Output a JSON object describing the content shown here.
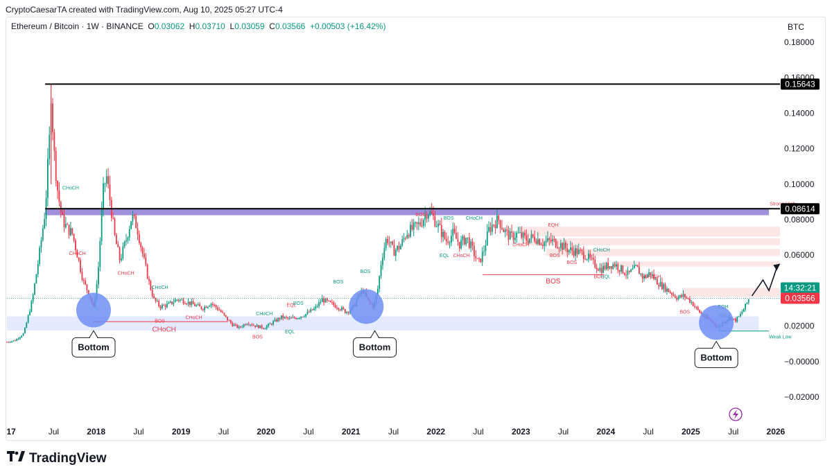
{
  "header": {
    "credit": "CryptoCaesarTA created with TradingView.com, Aug 10, 2025 05:27 UTC-4",
    "symbol": "Ethereum / Bitcoin · 1W · BINANCE",
    "o_label": "O",
    "o": "0.03062",
    "h_label": "H",
    "h": "0.03710",
    "l_label": "L",
    "l": "0.03059",
    "c_label": "C",
    "c": "0.03566",
    "change": "+0.00503 (+16.42%)",
    "currency": "BTC"
  },
  "brand": {
    "name": "TradingView"
  },
  "badges": {
    "ath": "0.15643",
    "resistance": "0.08614",
    "countdown": "14:32:21",
    "last": "0.03566"
  },
  "colors": {
    "up": "#089981",
    "down": "#f23645",
    "zone_blue": "#dbe3ff",
    "zone_purple": "#8f7dd6",
    "zone_red": "#fde0e0",
    "circle": "#6e8ef5"
  },
  "chart_data": {
    "type": "candlestick",
    "title": "",
    "xlabel": "",
    "ylabel": "",
    "ylim": [
      -0.03,
      0.19
    ],
    "yticks": [
      "0.18000",
      "0.16000",
      "0.14000",
      "0.12000",
      "0.10000",
      "0.08000",
      "0.06000",
      "0.04000",
      "0.02000",
      "−0.00000",
      "−0.02000"
    ],
    "ytick_values": [
      0.18,
      0.16,
      0.14,
      0.12,
      0.1,
      0.08,
      0.06,
      0.04,
      0.02,
      0.0,
      -0.02
    ],
    "xticks": [
      {
        "label": "17",
        "t": 2017.0,
        "bold": true
      },
      {
        "label": "Jul",
        "t": 2017.5,
        "bold": false
      },
      {
        "label": "2018",
        "t": 2018.0,
        "bold": true
      },
      {
        "label": "Jul",
        "t": 2018.5,
        "bold": false
      },
      {
        "label": "2019",
        "t": 2019.0,
        "bold": true
      },
      {
        "label": "Jul",
        "t": 2019.5,
        "bold": false
      },
      {
        "label": "2020",
        "t": 2020.0,
        "bold": true
      },
      {
        "label": "Jul",
        "t": 2020.5,
        "bold": false
      },
      {
        "label": "2021",
        "t": 2021.0,
        "bold": true
      },
      {
        "label": "Jul",
        "t": 2021.5,
        "bold": false
      },
      {
        "label": "2022",
        "t": 2022.0,
        "bold": true
      },
      {
        "label": "Jul",
        "t": 2022.5,
        "bold": false
      },
      {
        "label": "2023",
        "t": 2023.0,
        "bold": true
      },
      {
        "label": "Jul",
        "t": 2023.5,
        "bold": false
      },
      {
        "label": "2024",
        "t": 2024.0,
        "bold": true
      },
      {
        "label": "Jul",
        "t": 2024.5,
        "bold": false
      },
      {
        "label": "2025",
        "t": 2025.0,
        "bold": true
      },
      {
        "label": "Jul",
        "t": 2025.5,
        "bold": false
      },
      {
        "label": "2026",
        "t": 2026.0,
        "bold": true
      }
    ],
    "xlim": [
      2016.95,
      2026.05
    ],
    "price_path": [
      [
        2016.95,
        0.011
      ],
      [
        2017.05,
        0.012
      ],
      [
        2017.15,
        0.016
      ],
      [
        2017.25,
        0.035
      ],
      [
        2017.33,
        0.06
      ],
      [
        2017.4,
        0.085
      ],
      [
        2017.45,
        0.125
      ],
      [
        2017.47,
        0.153
      ],
      [
        2017.5,
        0.12
      ],
      [
        2017.55,
        0.095
      ],
      [
        2017.6,
        0.08
      ],
      [
        2017.66,
        0.075
      ],
      [
        2017.72,
        0.072
      ],
      [
        2017.78,
        0.06
      ],
      [
        2017.85,
        0.045
      ],
      [
        2017.92,
        0.038
      ],
      [
        2017.97,
        0.03
      ],
      [
        2018.02,
        0.048
      ],
      [
        2018.08,
        0.095
      ],
      [
        2018.12,
        0.105
      ],
      [
        2018.16,
        0.092
      ],
      [
        2018.22,
        0.07
      ],
      [
        2018.28,
        0.057
      ],
      [
        2018.35,
        0.068
      ],
      [
        2018.42,
        0.082
      ],
      [
        2018.48,
        0.076
      ],
      [
        2018.55,
        0.06
      ],
      [
        2018.62,
        0.045
      ],
      [
        2018.68,
        0.035
      ],
      [
        2018.75,
        0.031
      ],
      [
        2018.85,
        0.032
      ],
      [
        2018.95,
        0.035
      ],
      [
        2019.05,
        0.034
      ],
      [
        2019.15,
        0.032
      ],
      [
        2019.25,
        0.03
      ],
      [
        2019.35,
        0.033
      ],
      [
        2019.45,
        0.029
      ],
      [
        2019.52,
        0.025
      ],
      [
        2019.6,
        0.021
      ],
      [
        2019.68,
        0.019
      ],
      [
        2019.78,
        0.022
      ],
      [
        2019.88,
        0.02
      ],
      [
        2019.98,
        0.019
      ],
      [
        2020.08,
        0.022
      ],
      [
        2020.18,
        0.025
      ],
      [
        2020.28,
        0.024
      ],
      [
        2020.38,
        0.025
      ],
      [
        2020.48,
        0.027
      ],
      [
        2020.58,
        0.03
      ],
      [
        2020.66,
        0.035
      ],
      [
        2020.74,
        0.033
      ],
      [
        2020.84,
        0.031
      ],
      [
        2020.94,
        0.028
      ],
      [
        2021.02,
        0.03
      ],
      [
        2021.08,
        0.036
      ],
      [
        2021.14,
        0.04
      ],
      [
        2021.2,
        0.034
      ],
      [
        2021.27,
        0.031
      ],
      [
        2021.32,
        0.042
      ],
      [
        2021.36,
        0.058
      ],
      [
        2021.42,
        0.07
      ],
      [
        2021.5,
        0.062
      ],
      [
        2021.58,
        0.065
      ],
      [
        2021.66,
        0.073
      ],
      [
        2021.74,
        0.075
      ],
      [
        2021.82,
        0.078
      ],
      [
        2021.9,
        0.085
      ],
      [
        2021.96,
        0.082
      ],
      [
        2022.04,
        0.075
      ],
      [
        2022.12,
        0.068
      ],
      [
        2022.2,
        0.072
      ],
      [
        2022.28,
        0.066
      ],
      [
        2022.36,
        0.07
      ],
      [
        2022.44,
        0.062
      ],
      [
        2022.5,
        0.055
      ],
      [
        2022.56,
        0.062
      ],
      [
        2022.62,
        0.074
      ],
      [
        2022.68,
        0.078
      ],
      [
        2022.74,
        0.08
      ],
      [
        2022.8,
        0.074
      ],
      [
        2022.88,
        0.07
      ],
      [
        2022.96,
        0.072
      ],
      [
        2023.06,
        0.069
      ],
      [
        2023.16,
        0.07
      ],
      [
        2023.26,
        0.067
      ],
      [
        2023.36,
        0.068
      ],
      [
        2023.46,
        0.066
      ],
      [
        2023.56,
        0.063
      ],
      [
        2023.66,
        0.062
      ],
      [
        2023.76,
        0.06
      ],
      [
        2023.86,
        0.055
      ],
      [
        2023.94,
        0.052
      ],
      [
        2024.02,
        0.054
      ],
      [
        2024.1,
        0.055
      ],
      [
        2024.18,
        0.052
      ],
      [
        2024.26,
        0.049
      ],
      [
        2024.36,
        0.053
      ],
      [
        2024.44,
        0.047
      ],
      [
        2024.52,
        0.05
      ],
      [
        2024.6,
        0.045
      ],
      [
        2024.68,
        0.042
      ],
      [
        2024.76,
        0.039
      ],
      [
        2024.84,
        0.036
      ],
      [
        2024.92,
        0.037
      ],
      [
        2025.0,
        0.034
      ],
      [
        2025.08,
        0.029
      ],
      [
        2025.16,
        0.025
      ],
      [
        2025.24,
        0.023
      ],
      [
        2025.32,
        0.019
      ],
      [
        2025.4,
        0.023
      ],
      [
        2025.46,
        0.025
      ],
      [
        2025.52,
        0.023
      ],
      [
        2025.58,
        0.026
      ],
      [
        2025.64,
        0.031
      ],
      [
        2025.69,
        0.036
      ]
    ],
    "levels": [
      {
        "name": "all-time-high",
        "value": 0.15643,
        "from": 2017.4,
        "to": 2026.05
      },
      {
        "name": "resistance",
        "value": 0.08614,
        "from": 2017.4,
        "to": 2026.05
      }
    ],
    "zones": [
      {
        "name": "support",
        "from": 2016.95,
        "to": 2025.8,
        "y0": 0.0175,
        "y1": 0.0255,
        "kind": "blue"
      },
      {
        "name": "resistance-band",
        "from": 2017.4,
        "to": 2025.92,
        "y0": 0.0825,
        "y1": 0.0865,
        "kind": "purple"
      },
      {
        "name": "supply-1",
        "from": 2023.0,
        "to": 2026.05,
        "y0": 0.0705,
        "y1": 0.076,
        "kind": "red"
      },
      {
        "name": "supply-2",
        "from": 2023.0,
        "to": 2026.05,
        "y0": 0.0655,
        "y1": 0.0695,
        "kind": "red"
      },
      {
        "name": "supply-3",
        "from": 2023.3,
        "to": 2026.05,
        "y0": 0.0595,
        "y1": 0.0635,
        "kind": "red"
      },
      {
        "name": "supply-4",
        "from": 2024.1,
        "to": 2026.05,
        "y0": 0.0535,
        "y1": 0.0565,
        "kind": "red"
      },
      {
        "name": "supply-5",
        "from": 2024.9,
        "to": 2026.05,
        "y0": 0.0365,
        "y1": 0.0415,
        "kind": "red"
      }
    ],
    "circles": [
      {
        "t": 2017.97,
        "v": 0.029
      },
      {
        "t": 2021.18,
        "v": 0.031
      },
      {
        "t": 2025.3,
        "v": 0.022
      }
    ],
    "callouts": [
      {
        "label": "Bottom",
        "t": 2017.97,
        "v": 0.008
      },
      {
        "label": "Bottom",
        "t": 2021.28,
        "v": 0.008
      },
      {
        "label": "Bottom",
        "t": 2025.3,
        "v": 0.002
      }
    ],
    "annotations": [
      {
        "text": "CHoCH",
        "t": 2017.7,
        "v": 0.097,
        "color": "#089981"
      },
      {
        "text": "CHoCH",
        "t": 2017.78,
        "v": 0.06,
        "color": "#f23645"
      },
      {
        "text": "CHoCH",
        "t": 2018.35,
        "v": 0.049,
        "color": "#f23645"
      },
      {
        "text": "CHoCH",
        "t": 2018.75,
        "v": 0.041,
        "color": "#089981"
      },
      {
        "text": "BOS",
        "t": 2018.75,
        "v": 0.022,
        "color": "#f23645"
      },
      {
        "text": "CHoCH",
        "t": 2019.15,
        "v": 0.024,
        "color": "#f23645"
      },
      {
        "text": "CHoCH",
        "t": 2018.8,
        "v": 0.017,
        "color": "#f23645",
        "big": true
      },
      {
        "text": "BOS",
        "t": 2019.9,
        "v": 0.013,
        "color": "#f23645"
      },
      {
        "text": "CHoCH",
        "t": 2019.98,
        "v": 0.026,
        "color": "#089981"
      },
      {
        "text": "EQL",
        "t": 2020.28,
        "v": 0.016,
        "color": "#089981"
      },
      {
        "text": "EQL",
        "t": 2020.3,
        "v": 0.031,
        "color": "#f23645"
      },
      {
        "text": "BOS",
        "t": 2020.38,
        "v": 0.032,
        "color": "#089981"
      },
      {
        "text": "BOS",
        "t": 2020.85,
        "v": 0.044,
        "color": "#089981"
      },
      {
        "text": "BOS",
        "t": 2021.17,
        "v": 0.05,
        "color": "#089981"
      },
      {
        "text": "BOS",
        "t": 2021.82,
        "v": 0.082,
        "color": "#f23645"
      },
      {
        "text": "BOS",
        "t": 2022.15,
        "v": 0.08,
        "color": "#089981"
      },
      {
        "text": "CHoCH",
        "t": 2022.45,
        "v": 0.08,
        "color": "#089981"
      },
      {
        "text": "EQL",
        "t": 2022.1,
        "v": 0.059,
        "color": "#089981"
      },
      {
        "text": "CHoCH",
        "t": 2022.3,
        "v": 0.059,
        "color": "#f23645"
      },
      {
        "text": "EQH",
        "t": 2023.38,
        "v": 0.076,
        "color": "#f23645"
      },
      {
        "text": "CHoCH",
        "t": 2023.0,
        "v": 0.065,
        "color": "#f23645"
      },
      {
        "text": "BOS",
        "t": 2023.4,
        "v": 0.059,
        "color": "#f23645"
      },
      {
        "text": "BOS",
        "t": 2023.6,
        "v": 0.055,
        "color": "#f23645"
      },
      {
        "text": "BOS",
        "t": 2023.38,
        "v": 0.044,
        "color": "#f23645",
        "big": true
      },
      {
        "text": "CHoCH",
        "t": 2023.95,
        "v": 0.062,
        "color": "#089981"
      },
      {
        "text": "BOS",
        "t": 2023.92,
        "v": 0.047,
        "color": "#f23645"
      },
      {
        "text": "EQL",
        "t": 2024.0,
        "v": 0.047,
        "color": "#089981"
      },
      {
        "text": "CHoCH",
        "t": 2024.55,
        "v": 0.047,
        "color": "#f23645"
      },
      {
        "text": "BOS",
        "t": 2024.93,
        "v": 0.027,
        "color": "#f23645"
      },
      {
        "text": "EQH",
        "t": 2025.38,
        "v": 0.03,
        "color": "#089981"
      },
      {
        "text": "EQL",
        "t": 2025.38,
        "v": 0.025,
        "color": "#089981"
      },
      {
        "text": "Strong High",
        "t": 2025.93,
        "v": 0.088,
        "color": "#f23645"
      },
      {
        "text": "Weak Low",
        "t": 2025.92,
        "v": 0.013,
        "color": "#089981"
      }
    ],
    "projection": [
      [
        2025.72,
        0.037
      ],
      [
        2025.85,
        0.046
      ],
      [
        2025.92,
        0.04
      ],
      [
        2026.02,
        0.054
      ]
    ]
  }
}
